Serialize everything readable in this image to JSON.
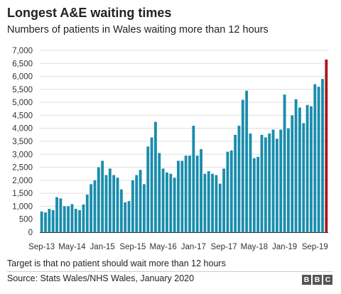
{
  "header": {
    "title": "Longest A&E waiting times",
    "subtitle": "Numbers of patients in Wales waiting more than 12 hours"
  },
  "footer": {
    "note": "Target is that no patient should wait more than 12 hours",
    "source": "Source: Stats Wales/NHS Wales, January 2020",
    "logo_letters": [
      "B",
      "B",
      "C"
    ]
  },
  "colors": {
    "bar": "#1a8dac",
    "highlight": "#a8181c",
    "grid": "#dddddd",
    "axis": "#333333"
  },
  "chart_data": {
    "type": "bar",
    "title": "Longest A&E waiting times",
    "subtitle": "Numbers of patients in Wales waiting more than 12 hours",
    "xlabel": "",
    "ylabel": "",
    "ylim": [
      0,
      7000
    ],
    "yticks": [
      0,
      500,
      1000,
      1500,
      2000,
      2500,
      3000,
      3500,
      4000,
      4500,
      5000,
      5500,
      6000,
      6500,
      7000
    ],
    "ytick_labels": [
      "0",
      "500",
      "1,000",
      "1,500",
      "2,000",
      "2,500",
      "3,000",
      "3,500",
      "4,000",
      "4,500",
      "5,000",
      "5,500",
      "6,000",
      "6,500",
      "7,000"
    ],
    "xtick_labels": [
      {
        "index": 0,
        "label": "Sep-13"
      },
      {
        "index": 8,
        "label": "May-14"
      },
      {
        "index": 16,
        "label": "Jan-15"
      },
      {
        "index": 24,
        "label": "Sep-15"
      },
      {
        "index": 32,
        "label": "May-16"
      },
      {
        "index": 40,
        "label": "Jan-17"
      },
      {
        "index": 48,
        "label": "Sep-17"
      },
      {
        "index": 56,
        "label": "May-18"
      },
      {
        "index": 64,
        "label": "Jan-19"
      },
      {
        "index": 72,
        "label": "Sep-19"
      }
    ],
    "grid": true,
    "highlight_last": true,
    "values": [
      800,
      760,
      900,
      850,
      1350,
      1300,
      1000,
      1000,
      1080,
      900,
      850,
      1070,
      1450,
      1850,
      2000,
      2500,
      2750,
      2200,
      2450,
      2200,
      2100,
      1650,
      1150,
      1200,
      2000,
      2200,
      2400,
      1850,
      3300,
      3650,
      4250,
      3050,
      2450,
      2300,
      2250,
      2100,
      2750,
      2750,
      2950,
      2950,
      4100,
      2950,
      3200,
      2250,
      2350,
      2250,
      2200,
      1870,
      2450,
      3100,
      3150,
      3750,
      4100,
      5100,
      5450,
      3800,
      2850,
      2900,
      3750,
      3650,
      3800,
      3950,
      3600,
      3950,
      5300,
      4000,
      4500,
      5120,
      4800,
      4200,
      4900,
      4850,
      5700,
      5600,
      5900,
      6650
    ]
  }
}
